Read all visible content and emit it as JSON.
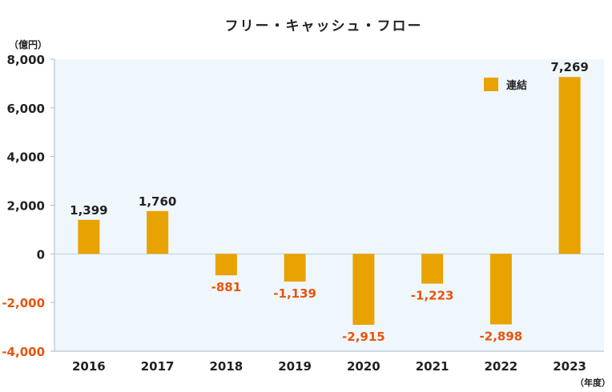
{
  "chart_data": {
    "type": "bar",
    "title": "フリー・キャッシュ・フロー",
    "unit_label": "（億円）",
    "x_unit_label": "（年度）",
    "categories": [
      "2016",
      "2017",
      "2018",
      "2019",
      "2020",
      "2021",
      "2022",
      "2023"
    ],
    "series": [
      {
        "name": "連結",
        "values": [
          1399,
          1760,
          -881,
          -1139,
          -2915,
          -1223,
          -2898,
          7269
        ],
        "value_labels": [
          "1,399",
          "1,760",
          "-881",
          "-1,139",
          "-2,915",
          "-1,223",
          "-2,898",
          "7,269"
        ]
      }
    ],
    "ylim": [
      -4000,
      8000
    ],
    "yticks": [
      8000,
      6000,
      4000,
      2000,
      0,
      -2000,
      -4000
    ],
    "ytick_labels": [
      "8,000",
      "6,000",
      "4,000",
      "2,000",
      "0",
      "-2,000",
      "-4,000"
    ],
    "negative_tick_labels": [
      "-2,000",
      "-4,000"
    ],
    "grid": false,
    "legend_position": "top-right",
    "colors": {
      "bar": "#E8A300",
      "plot_bg": "#EFF7FD",
      "positive_label": "#222222",
      "negative_label": "#E8540C",
      "axis": "#AAB8C4",
      "zero_line": "#B9CEDD"
    }
  }
}
